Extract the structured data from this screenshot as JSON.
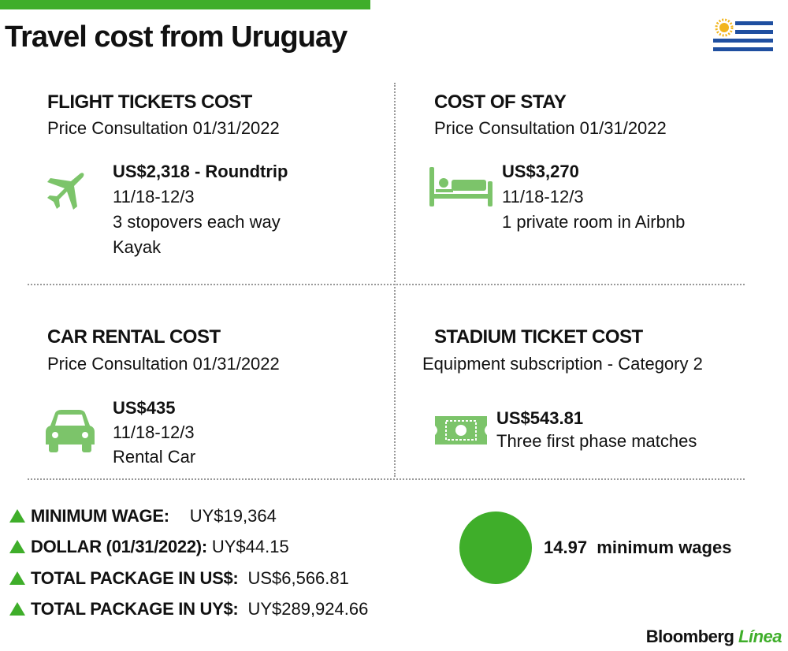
{
  "header": {
    "title": "Travel cost from Uruguay"
  },
  "panels": [
    {
      "title": "FLIGHT TICKETS COST",
      "subtitle": "Price Consultation 01/31/2022",
      "lines": [
        "US$2,318 - Roundtrip",
        "11/18-12/3",
        "3 stopovers each way",
        "Kayak"
      ]
    },
    {
      "title": "COST OF STAY",
      "subtitle": "Price Consultation 01/31/2022",
      "lines": [
        "US$3,270",
        "11/18-12/3",
        "1 private room in Airbnb"
      ]
    },
    {
      "title": "CAR RENTAL COST",
      "subtitle": "Price Consultation 01/31/2022",
      "lines": [
        "US$435",
        "11/18-12/3",
        "Rental Car"
      ]
    },
    {
      "title": "STADIUM TICKET COST",
      "subtitle": "Equipment subscription - Category 2",
      "lines": [
        "US$543.81",
        "Three first phase matches"
      ]
    }
  ],
  "stats": [
    {
      "label": "MINIMUM WAGE:",
      "value": "UY$19,364"
    },
    {
      "label": "DOLLAR (01/31/2022):",
      "value": "UY$44.15"
    },
    {
      "label": "TOTAL PACKAGE IN US$:",
      "value": "US$6,566.81"
    },
    {
      "label": "TOTAL PACKAGE IN UY$:",
      "value": "UY$289,924.66"
    }
  ],
  "summary": {
    "value": "14.97",
    "label": "minimum wages"
  },
  "footer": {
    "brand": "Bloomberg",
    "brand_accent": "Línea"
  }
}
